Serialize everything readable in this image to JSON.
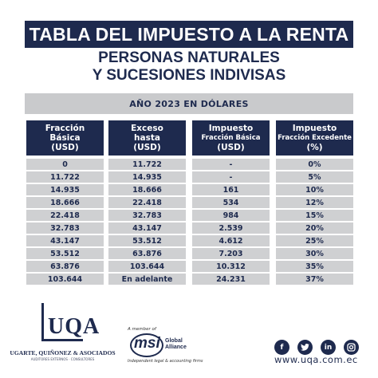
{
  "title": "TABLA DEL IMPUESTO A LA RENTA",
  "subtitle_line1": "PERSONAS NATURALES",
  "subtitle_line2": "Y SUCESIONES INDIVISAS",
  "year_label": "AÑO 2023 EN DÓLARES",
  "columns": [
    {
      "lines": [
        "Fracción",
        "Básica",
        "(USD)"
      ]
    },
    {
      "lines": [
        "Exceso",
        "hasta",
        "(USD)"
      ]
    },
    {
      "lines": [
        "Impuesto",
        "Fracción Básica",
        "(USD)"
      ]
    },
    {
      "lines": [
        "Impuesto",
        "Fracción Excedente",
        "(%)"
      ]
    }
  ],
  "rows": [
    [
      "0",
      "11.722",
      "-",
      "0%"
    ],
    [
      "11.722",
      "14.935",
      "-",
      "5%"
    ],
    [
      "14.935",
      "18.666",
      "161",
      "10%"
    ],
    [
      "18.666",
      "22.418",
      "534",
      "12%"
    ],
    [
      "22.418",
      "32.783",
      "984",
      "15%"
    ],
    [
      "32.783",
      "43.147",
      "2.539",
      "20%"
    ],
    [
      "43.147",
      "53.512",
      "4.612",
      "25%"
    ],
    [
      "53.512",
      "63.876",
      "7.203",
      "30%"
    ],
    [
      "63.876",
      "103.644",
      "10.312",
      "35%"
    ],
    [
      "103.644",
      "En adelante",
      "24.231",
      "37%"
    ]
  ],
  "footer": {
    "logo_text": "UQA",
    "firm_name": "UGARTE, QUIÑONEZ & ASOCIADOS",
    "firm_tagline": "AUDITORES EXTERNOS · CONSULTORES",
    "member_of": "A member of",
    "msi_logo": "msi",
    "msi_side_line1": "Global",
    "msi_side_line2": "Alliance",
    "msi_tagline": "Independent legal & accounting firms",
    "social_icons": [
      "facebook-icon",
      "twitter-icon",
      "linkedin-icon",
      "instagram-icon"
    ],
    "website": "www.uqa.com.ec"
  },
  "colors": {
    "navy": "#1e2a4e",
    "gray": "#cfd0d2"
  }
}
